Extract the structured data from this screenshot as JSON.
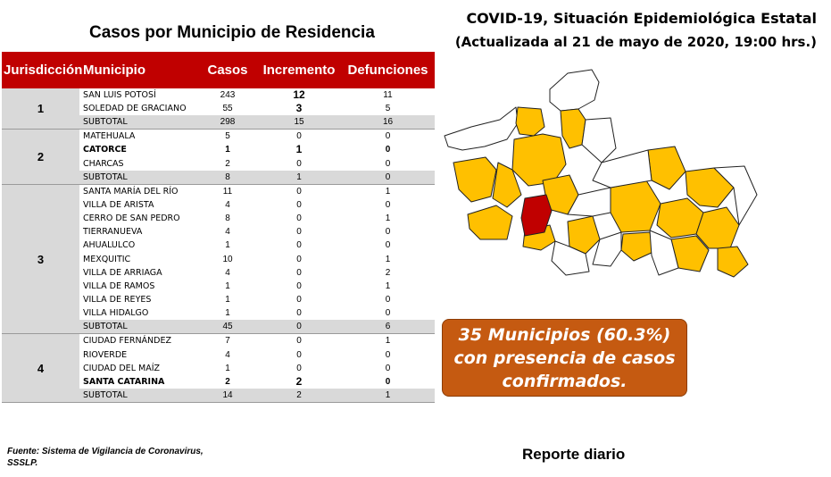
{
  "table_title": "Casos por Municipio  de Residencia",
  "main_title": {
    "line1": "COVID-19, Situación Epidemiológica Estatal",
    "line2": "(Actualizada al 21 de mayo de 2020, 19:00 hrs.)"
  },
  "headers": {
    "jurisdiccion": "Jurisdicción",
    "municipio": "Municipio",
    "casos": "Casos",
    "incremento": "Incremento",
    "defunciones": "Defunciones"
  },
  "groups": [
    {
      "jurisdiccion": "1",
      "rows": [
        {
          "municipio": "SAN LUIS POTOSÍ",
          "casos": "243",
          "incremento": "12",
          "defunciones": "11"
        },
        {
          "municipio": "SOLEDAD DE GRACIANO",
          "casos": "55",
          "incremento": "3",
          "defunciones": "5"
        }
      ],
      "subtotal": {
        "label": "SUBTOTAL",
        "casos": "298",
        "incremento": "15",
        "defunciones": "16"
      }
    },
    {
      "jurisdiccion": "2",
      "rows": [
        {
          "municipio": "MATEHUALA",
          "casos": "5",
          "incremento": "0",
          "defunciones": "0"
        },
        {
          "municipio": "CATORCE",
          "casos": "1",
          "incremento": "1",
          "defunciones": "0"
        },
        {
          "municipio": "CHARCAS",
          "casos": "2",
          "incremento": "0",
          "defunciones": "0"
        }
      ],
      "subtotal": {
        "label": "SUBTOTAL",
        "casos": "8",
        "incremento": "1",
        "defunciones": "0"
      }
    },
    {
      "jurisdiccion": "3",
      "rows": [
        {
          "municipio": "SANTA MARÍA DEL RÍO",
          "casos": "11",
          "incremento": "0",
          "defunciones": "1"
        },
        {
          "municipio": "VILLA DE ARISTA",
          "casos": "4",
          "incremento": "0",
          "defunciones": "0"
        },
        {
          "municipio": "CERRO DE SAN PEDRO",
          "casos": "8",
          "incremento": "0",
          "defunciones": "1"
        },
        {
          "municipio": "TIERRANUEVA",
          "casos": "4",
          "incremento": "0",
          "defunciones": "0"
        },
        {
          "municipio": "AHUALULCO",
          "casos": "1",
          "incremento": "0",
          "defunciones": "0"
        },
        {
          "municipio": "MEXQUITIC",
          "casos": "10",
          "incremento": "0",
          "defunciones": "1"
        },
        {
          "municipio": "VILLA DE ARRIAGA",
          "casos": "4",
          "incremento": "0",
          "defunciones": "2"
        },
        {
          "municipio": "VILLA DE RAMOS",
          "casos": "1",
          "incremento": "0",
          "defunciones": "1"
        },
        {
          "municipio": "VILLA DE REYES",
          "casos": "1",
          "incremento": "0",
          "defunciones": "0"
        },
        {
          "municipio": "VILLA HIDALGO",
          "casos": "1",
          "incremento": "0",
          "defunciones": "0"
        }
      ],
      "subtotal": {
        "label": "SUBTOTAL",
        "casos": "45",
        "incremento": "0",
        "defunciones": "6"
      }
    },
    {
      "jurisdiccion": "4",
      "rows": [
        {
          "municipio": "CIUDAD FERNÁNDEZ",
          "casos": "7",
          "incremento": "0",
          "defunciones": "1"
        },
        {
          "municipio": "RIOVERDE",
          "casos": "4",
          "incremento": "0",
          "defunciones": "0"
        },
        {
          "municipio": "CIUDAD DEL MAÍZ",
          "casos": "1",
          "incremento": "0",
          "defunciones": "0"
        },
        {
          "municipio": "SANTA CATARINA",
          "casos": "2",
          "incremento": "2",
          "defunciones": "0"
        }
      ],
      "subtotal": {
        "label": "SUBTOTAL",
        "casos": "14",
        "incremento": "2",
        "defunciones": "1"
      }
    }
  ],
  "callout": {
    "line1": "35 Municipios (60.3%)",
    "line2": "con presencia de casos",
    "line3": "confirmados."
  },
  "source": {
    "line1": "Fuente: Sistema de Vigilancia  de Coronavirus,",
    "line2": "SSSLP."
  },
  "report_label": "Reporte diario",
  "colors": {
    "header_red": "#c00000",
    "subtotal_gray": "#d9d9d9",
    "map_cases": "#ffc000",
    "map_capital": "#c00000",
    "map_no_cases": "#ffffff",
    "callout_orange": "#c55a11"
  }
}
